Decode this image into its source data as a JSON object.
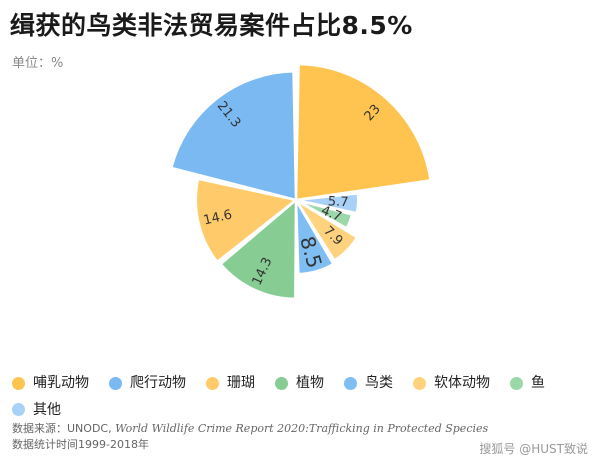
{
  "chart_data": {
    "type": "pie",
    "title": "缉获的鸟类非法贸易案件占比8.5%",
    "unit_label": "单位：%",
    "slices": [
      {
        "label": "哺乳动物",
        "value": 23,
        "value_label": "23",
        "color": "#FFC350"
      },
      {
        "label": "其他",
        "value": 5.7,
        "value_label": "5.7",
        "color": "#A9D1F7"
      },
      {
        "label": "鱼",
        "value": 4.7,
        "value_label": "4.7",
        "color": "#9CD7AA"
      },
      {
        "label": "软体动物",
        "value": 7.9,
        "value_label": "7.9",
        "color": "#FFD27D"
      },
      {
        "label": "鸟类",
        "value": 8.5,
        "value_label": "8.5",
        "color": "#7FBEF3"
      },
      {
        "label": "植物",
        "value": 14.3,
        "value_label": "14.3",
        "color": "#86CC93"
      },
      {
        "label": "珊瑚",
        "value": 14.6,
        "value_label": "14.6",
        "color": "#FFCB6A"
      },
      {
        "label": "爬行动物",
        "value": 21.3,
        "value_label": "21.3",
        "color": "#7AB9F2"
      }
    ],
    "legend": [
      {
        "label": "哺乳动物",
        "color": "#FFC350"
      },
      {
        "label": "爬行动物",
        "color": "#7AB9F2"
      },
      {
        "label": "珊瑚",
        "color": "#FFCB6A"
      },
      {
        "label": "植物",
        "color": "#86CC93"
      },
      {
        "label": "鸟类",
        "color": "#7FBEF3"
      },
      {
        "label": "软体动物",
        "color": "#FFD27D"
      },
      {
        "label": "鱼",
        "color": "#9CD7AA"
      },
      {
        "label": "其他",
        "color": "#A9D1F7"
      }
    ]
  },
  "source": {
    "prefix": "数据来源：UNODC, ",
    "report": "World Wildlife Crime Report 2020:Trafficking in Protected Species"
  },
  "period": "数据统计时间1999-2018年",
  "watermark": "搜狐号 @HUST致说"
}
